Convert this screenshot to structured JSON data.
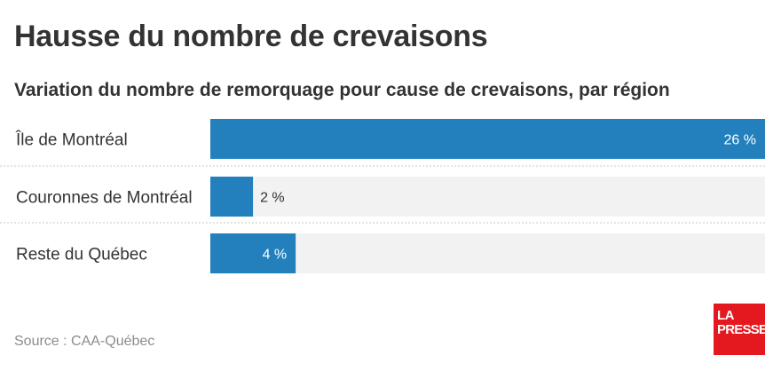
{
  "title": "Hausse du nombre de crevaisons",
  "subtitle": "Variation du nombre de remorquage pour cause de crevaisons, par région",
  "source": "Source : CAA-Québec",
  "logo": {
    "line1": "LA",
    "line2": "PRESSE"
  },
  "colors": {
    "bar": "#2380bd",
    "track": "#f2f2f2",
    "label_inside": "#ffffff",
    "label_outside": "#333333",
    "separator": "#c8c8c8",
    "logo_bg": "#e3191f"
  },
  "chart_data": {
    "type": "bar",
    "orientation": "horizontal",
    "categories": [
      "Île de Montréal",
      "Couronnes de Montréal",
      "Reste du Québec"
    ],
    "values": [
      26,
      2,
      4
    ],
    "value_labels": [
      "26 %",
      "2 %",
      "4 %"
    ],
    "unit": "%",
    "xlim": [
      0,
      26
    ],
    "grid": false,
    "legend": "none"
  }
}
